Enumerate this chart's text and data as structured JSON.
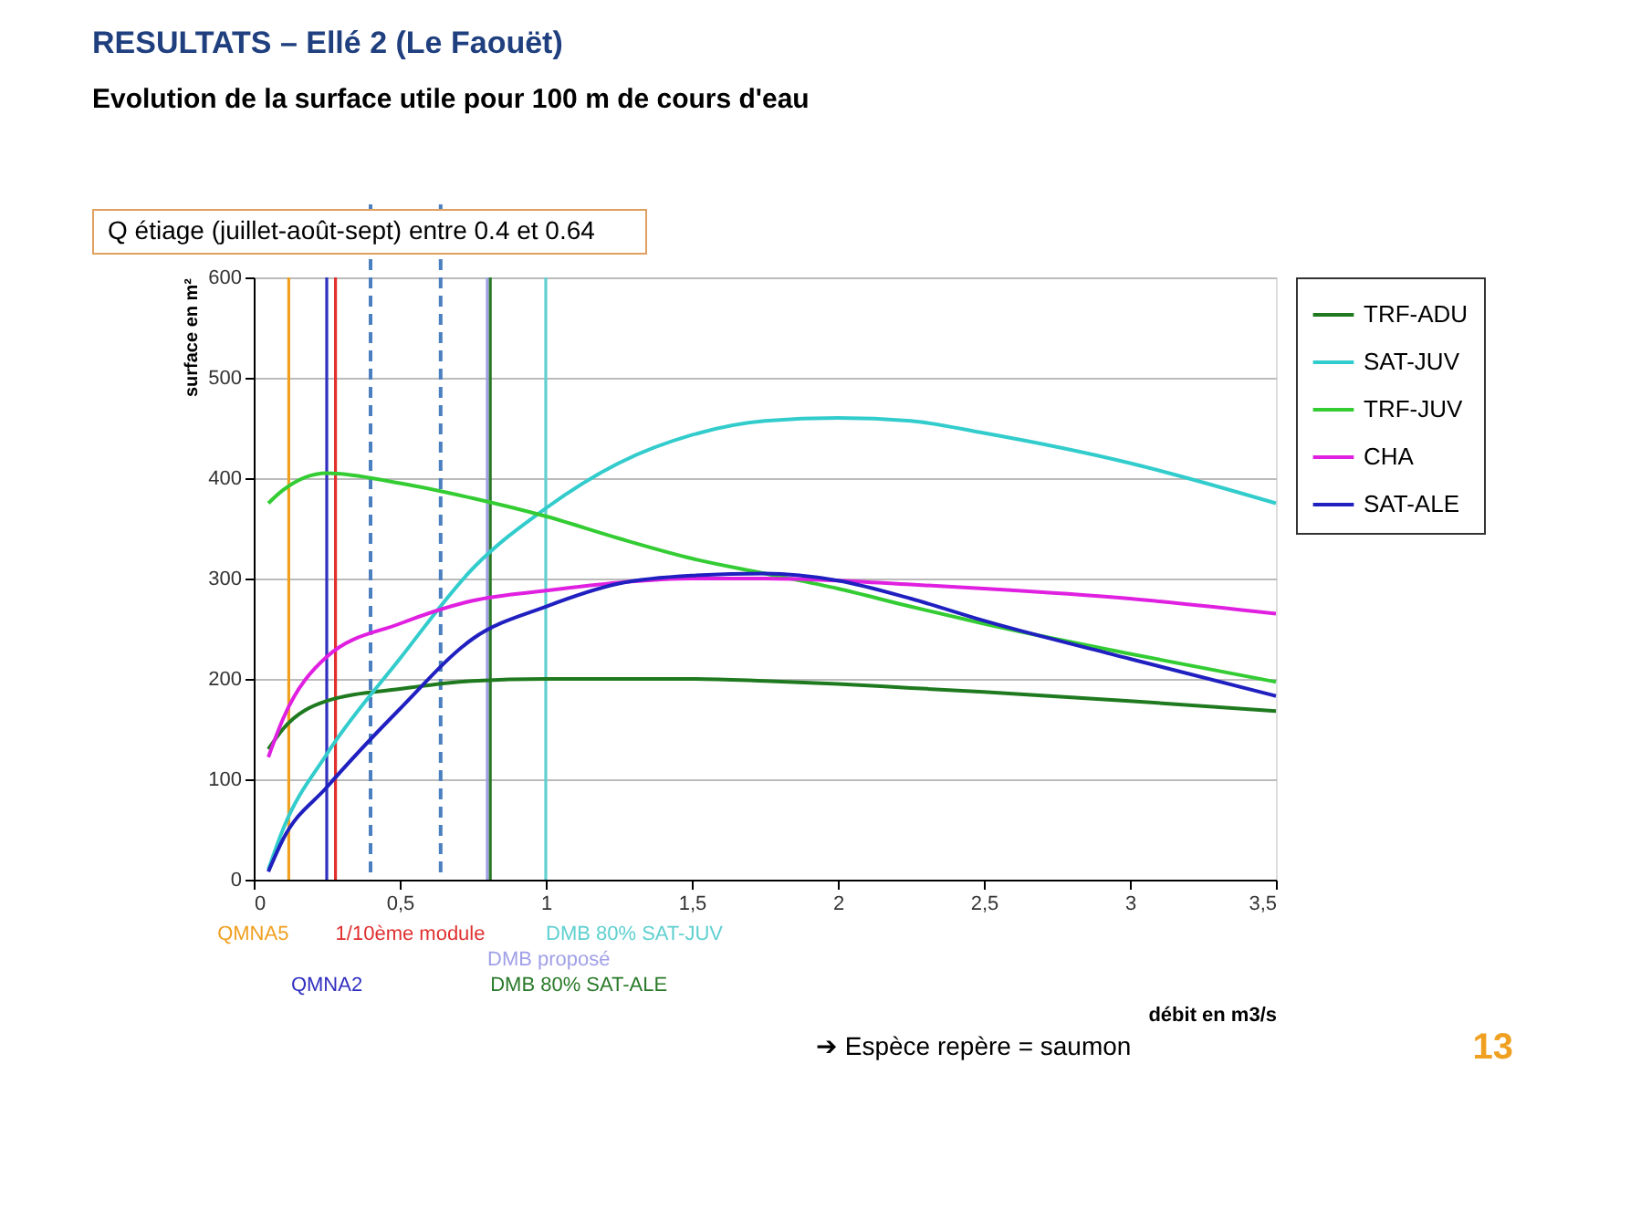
{
  "chart_data": {
    "type": "line",
    "title": "RESULTATS – Ellé  2 (Le Faouët)",
    "subtitle": "Evolution de la surface utile pour 100 m de cours d'eau",
    "xlabel": "débit en m3/s",
    "ylabel": "surface en m²",
    "x": [
      0.05,
      0.1,
      0.25,
      0.5,
      0.75,
      1,
      1.25,
      1.5,
      1.75,
      2,
      2.25,
      2.5,
      3,
      3.5
    ],
    "series": [
      {
        "name": "TRF-ADU",
        "color": "#1f7a1f",
        "values": [
          130,
          150,
          178,
          190,
          198,
          200,
          200,
          200,
          198,
          195,
          191,
          187,
          178,
          168
        ]
      },
      {
        "name": "SAT-JUV",
        "color": "#33cccc",
        "values": [
          10,
          50,
          125,
          220,
          310,
          370,
          415,
          443,
          457,
          460,
          457,
          445,
          415,
          375
        ]
      },
      {
        "name": "TRF-JUV",
        "color": "#33cc33",
        "values": [
          375,
          388,
          405,
          395,
          380,
          362,
          340,
          320,
          305,
          290,
          272,
          255,
          225,
          197
        ]
      },
      {
        "name": "CHA",
        "color": "#e020e0",
        "values": [
          122,
          160,
          222,
          255,
          278,
          288,
          296,
          300,
          300,
          298,
          294,
          290,
          280,
          265
        ]
      },
      {
        "name": "SAT-ALE",
        "color": "#2020c0",
        "values": [
          8,
          40,
          92,
          170,
          240,
          272,
          295,
          303,
          305,
          298,
          280,
          258,
          220,
          183
        ]
      }
    ],
    "xlim": [
      0,
      3.5
    ],
    "ylim": [
      0,
      600
    ],
    "xticks": [
      0,
      {
        "value": 0.5,
        "label": "0,5"
      },
      1,
      {
        "value": 1.5,
        "label": "1,5"
      },
      2,
      {
        "value": 2.5,
        "label": "2,5"
      },
      3,
      {
        "value": 3.5,
        "label": "3,5"
      }
    ],
    "yticks": [
      0,
      100,
      200,
      300,
      400,
      500,
      600
    ],
    "ref_lines": [
      {
        "axis": "x",
        "value": 0.12,
        "label": "QMNA5",
        "color": "#f0a020"
      },
      {
        "axis": "x",
        "value": 0.25,
        "label": "QMNA2",
        "color": "#3030c0"
      },
      {
        "axis": "x",
        "value": 0.28,
        "label": "1/10ème module",
        "color": "#e03030"
      },
      {
        "axis": "x",
        "value": 0.8,
        "label": "DMB proposé",
        "color": "#a0a0e8"
      },
      {
        "axis": "x",
        "value": 0.81,
        "label": "DMB 80% SAT-ALE",
        "color": "#2a7a2a"
      },
      {
        "axis": "x",
        "value": 1.0,
        "label": "DMB 80% SAT-JUV",
        "color": "#60d0d0"
      },
      {
        "axis": "x",
        "value": 0.4,
        "color": "#4a7fc0",
        "line_style": "dashed"
      },
      {
        "axis": "x",
        "value": 0.64,
        "color": "#4a7fc0",
        "line_style": "dashed"
      }
    ],
    "annotations": [
      "Q étiage (juillet-août-sept) entre 0.4 et 0.64",
      "➔ Espèce repère = saumon",
      "13"
    ],
    "grid": "y",
    "legend": "top right",
    "marker": "none",
    "line_style": "solid"
  }
}
